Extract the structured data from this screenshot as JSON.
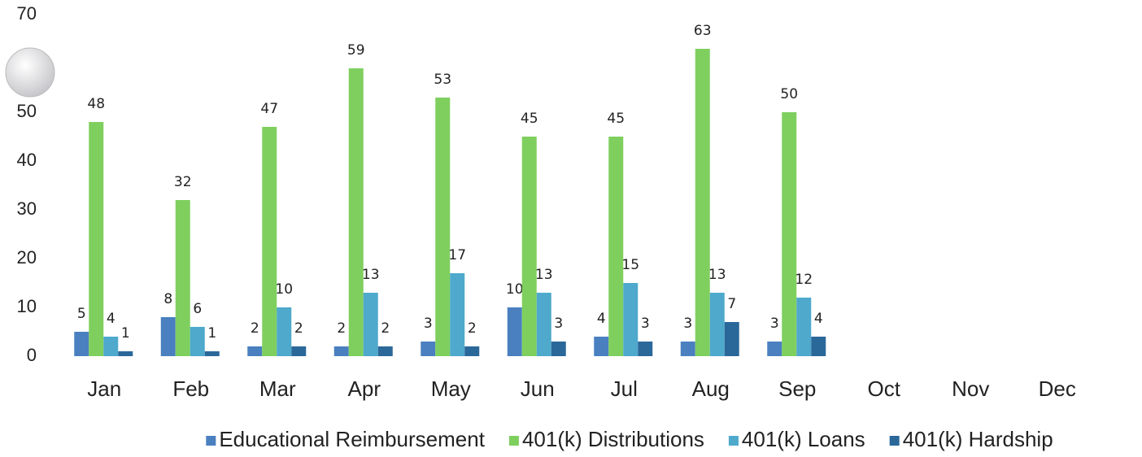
{
  "chart_data": {
    "type": "bar",
    "categories": [
      "Jan",
      "Feb",
      "Mar",
      "Apr",
      "May",
      "Jun",
      "Jul",
      "Aug",
      "Sep",
      "Oct",
      "Nov",
      "Dec"
    ],
    "series": [
      {
        "name": "Educational Reimbursement",
        "color": "#4a80c0",
        "values": [
          5,
          8,
          2,
          2,
          3,
          10,
          4,
          3,
          3,
          null,
          null,
          null
        ]
      },
      {
        "name": "401(k) Distributions",
        "color": "#7fcf5f",
        "values": [
          48,
          32,
          47,
          59,
          53,
          45,
          45,
          63,
          50,
          null,
          null,
          null
        ]
      },
      {
        "name": "401(k) Loans",
        "color": "#4ea9cc",
        "values": [
          4,
          6,
          10,
          13,
          17,
          13,
          15,
          13,
          12,
          null,
          null,
          null
        ]
      },
      {
        "name": "401(k) Hardship",
        "color": "#2b689a",
        "values": [
          1,
          1,
          2,
          2,
          2,
          3,
          3,
          7,
          4,
          null,
          null,
          null
        ]
      }
    ],
    "ylim": [
      0,
      70
    ],
    "yticks": [
      0,
      10,
      20,
      30,
      40,
      50,
      70
    ],
    "legend": "bottom"
  }
}
